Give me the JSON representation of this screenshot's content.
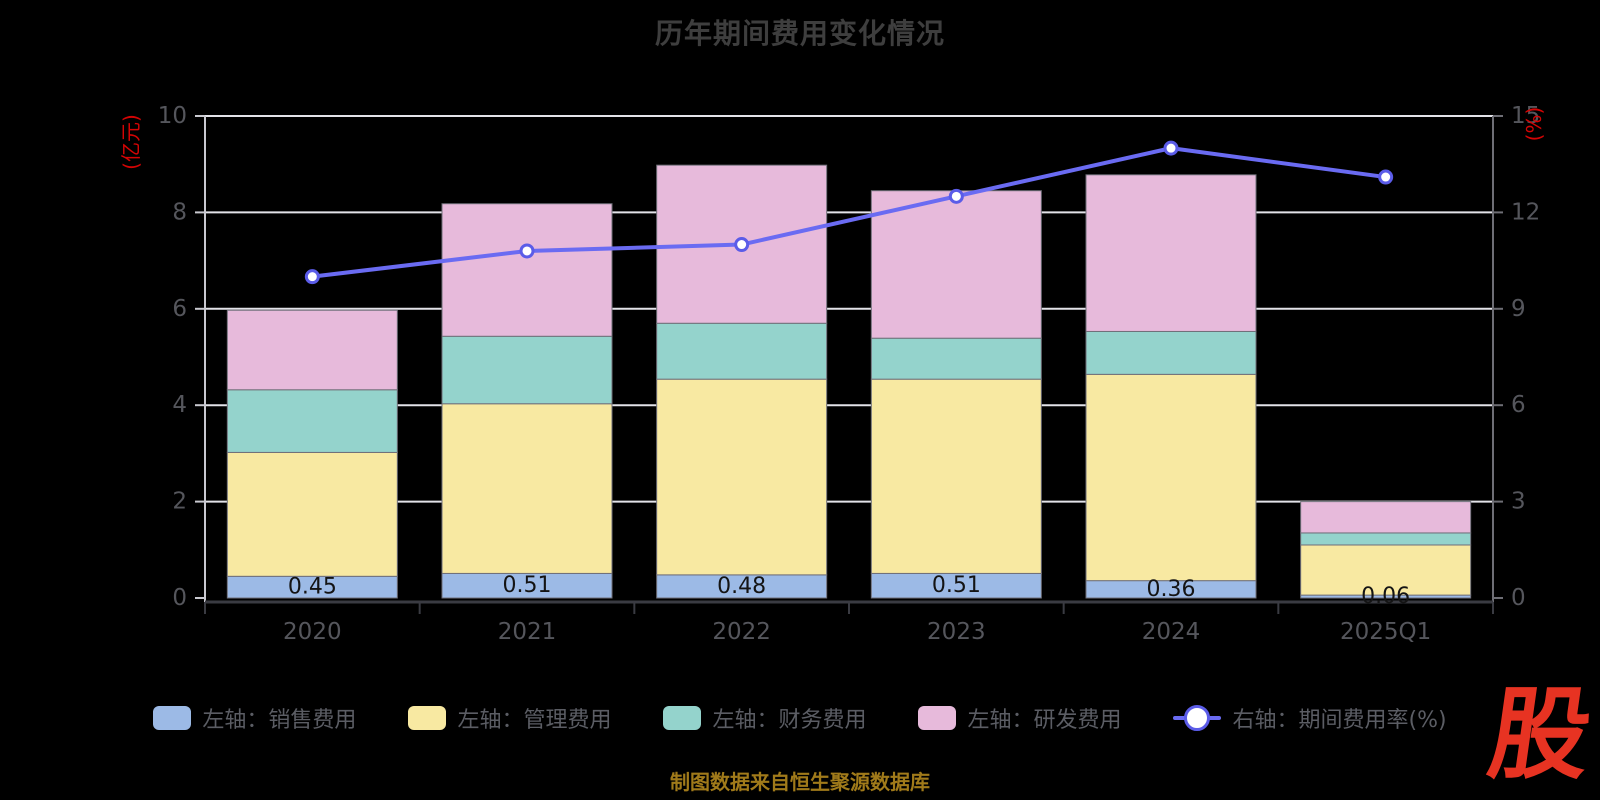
{
  "title": "历年期间费用变化情况",
  "source_note": "制图数据来自恒生聚源数据库",
  "watermark": "股",
  "chart_data": {
    "type": "bar",
    "subtype": "stacked-bar-with-right-axis-line",
    "title": "历年期间费用变化情况",
    "categories": [
      "2020",
      "2021",
      "2022",
      "2023",
      "2024",
      "2025Q1"
    ],
    "left_axis": {
      "name": "(亿元)",
      "min": 0,
      "max": 10,
      "ticks": [
        0,
        2,
        4,
        6,
        8,
        10
      ],
      "grid_ticks": [
        2,
        4,
        6,
        8,
        10
      ]
    },
    "right_axis": {
      "name": "(%)",
      "min": 0,
      "max": 15,
      "ticks": [
        0,
        3,
        6,
        9,
        12,
        15
      ]
    },
    "grid": true,
    "legend_position": "bottom",
    "series": [
      {
        "name": "左轴：销售费用",
        "key": "selling-expense",
        "axis": "left",
        "type": "bar",
        "stack": true,
        "color": "#9cbae6",
        "values": [
          0.45,
          0.51,
          0.48,
          0.51,
          0.36,
          0.06
        ]
      },
      {
        "name": "左轴：管理费用",
        "key": "admin-expense",
        "axis": "left",
        "type": "bar",
        "stack": true,
        "color": "#f8e9a2",
        "values": [
          2.57,
          3.52,
          4.06,
          4.03,
          4.28,
          1.04
        ]
      },
      {
        "name": "左轴：财务费用",
        "key": "finance-expense",
        "axis": "left",
        "type": "bar",
        "stack": true,
        "color": "#94d3cc",
        "values": [
          1.3,
          1.4,
          1.16,
          0.85,
          0.89,
          0.25
        ]
      },
      {
        "name": "左轴：研发费用",
        "key": "rd-expense",
        "axis": "left",
        "type": "bar",
        "stack": true,
        "color": "#e7badb",
        "values": [
          1.65,
          2.75,
          3.28,
          3.06,
          3.25,
          0.65
        ]
      },
      {
        "name": "右轴：期间费用率(%)",
        "key": "period-expense-ratio",
        "axis": "right",
        "type": "line",
        "color": "#6a6bf2",
        "values": [
          10.0,
          10.8,
          11.0,
          12.5,
          14.0,
          13.1
        ]
      }
    ],
    "bar_value_labels": [
      "0.45",
      "0.51",
      "0.48",
      "0.51",
      "0.36",
      "0.06"
    ]
  },
  "legend": {
    "items": [
      {
        "label": "左轴：销售费用",
        "marker": "rect",
        "color": "#9cbae6"
      },
      {
        "label": "左轴：管理费用",
        "marker": "rect",
        "color": "#f8e9a2"
      },
      {
        "label": "左轴：财务费用",
        "marker": "rect",
        "color": "#94d3cc"
      },
      {
        "label": "左轴：研发费用",
        "marker": "rect",
        "color": "#e7badb"
      },
      {
        "label": "右轴：期间费用率(%)",
        "marker": "line",
        "color": "#6a6bf2"
      }
    ]
  },
  "colors": {
    "background": "#000000",
    "title": "#3e3e3e",
    "axis_label": "#55565c",
    "axis_name_red": "#d40404",
    "grid_line": "#e3e3e9",
    "left_axis_line": "#c9c9d0",
    "right_axis_line": "#6e6e75",
    "x_axis_line": "#3a3b42",
    "bar_border": "#70707a",
    "bar_label": "#141414",
    "line_marker_ring": "#5b5ce8",
    "source_note": "#a07a1a",
    "watermark_red": "#e73322"
  }
}
